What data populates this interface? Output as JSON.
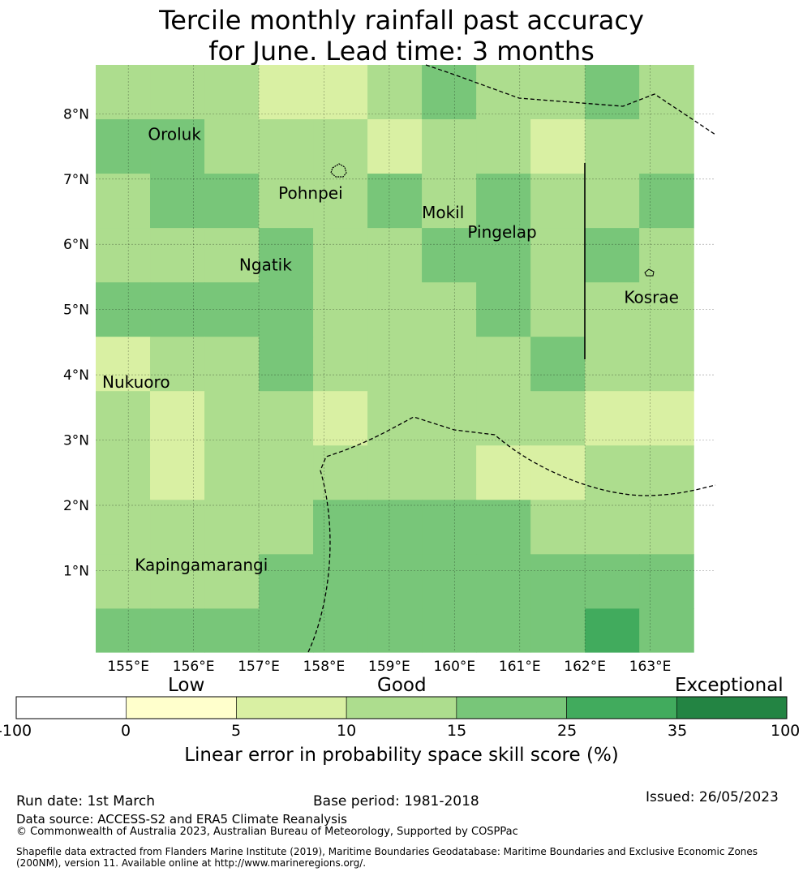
{
  "title": {
    "line1": "Tercile monthly rainfall past accuracy",
    "line2": "for June. Lead time: 3 months"
  },
  "axes": {
    "lon_labels": [
      "155°E",
      "156°E",
      "157°E",
      "158°E",
      "159°E",
      "160°E",
      "161°E",
      "162°E",
      "163°E"
    ],
    "lon_values": [
      155,
      156,
      157,
      158,
      159,
      160,
      161,
      162,
      163
    ],
    "lat_labels": [
      "8°N",
      "7°N",
      "6°N",
      "5°N",
      "4°N",
      "3°N",
      "2°N",
      "1°N"
    ],
    "lat_values": [
      8,
      7,
      6,
      5,
      4,
      3,
      2,
      1
    ],
    "lon_range": [
      154.5,
      164.0
    ],
    "lat_range": [
      -0.25,
      8.75
    ]
  },
  "places": [
    {
      "name": "Oroluk",
      "lon": 155.3,
      "lat": 7.6
    },
    {
      "name": "Pohnpei",
      "lon": 157.3,
      "lat": 6.7
    },
    {
      "name": "Mokil",
      "lon": 159.5,
      "lat": 6.4
    },
    {
      "name": "Pingelap",
      "lon": 160.2,
      "lat": 6.1
    },
    {
      "name": "Ngatik",
      "lon": 156.7,
      "lat": 5.6
    },
    {
      "name": "Kosrae",
      "lon": 162.6,
      "lat": 5.1
    },
    {
      "name": "Nukuoro",
      "lon": 154.6,
      "lat": 3.8
    },
    {
      "name": "Kapingamarangi",
      "lon": 155.1,
      "lat": 1.0
    }
  ],
  "grid": {
    "lon_start": 154.5,
    "lat_top": 8.75,
    "cell": 0.8333,
    "cols": 11,
    "rows": 16,
    "note": "class index per cell; 2 = 5-10, 3 = 10-15, 4 = 15-25, 5 = 25-35, 6 = 35-100",
    "classes": [
      [
        3,
        3,
        3,
        2,
        2,
        3,
        4,
        3,
        3,
        4,
        3
      ],
      [
        4,
        4,
        3,
        3,
        3,
        2,
        3,
        3,
        2,
        3,
        3
      ],
      [
        3,
        4,
        4,
        3,
        3,
        4,
        3,
        4,
        3,
        3,
        4
      ],
      [
        3,
        3,
        3,
        4,
        3,
        3,
        4,
        4,
        3,
        4,
        3
      ],
      [
        4,
        4,
        4,
        4,
        3,
        3,
        3,
        4,
        3,
        3,
        3
      ],
      [
        2,
        3,
        3,
        4,
        3,
        3,
        3,
        3,
        4,
        3,
        3
      ],
      [
        3,
        2,
        3,
        3,
        2,
        3,
        3,
        3,
        3,
        2,
        2
      ],
      [
        3,
        2,
        3,
        3,
        3,
        3,
        3,
        2,
        2,
        3,
        3
      ],
      [
        3,
        3,
        3,
        3,
        4,
        4,
        4,
        4,
        3,
        3,
        3
      ],
      [
        3,
        3,
        3,
        4,
        4,
        4,
        4,
        4,
        4,
        4,
        4
      ],
      [
        4,
        4,
        4,
        4,
        4,
        4,
        4,
        4,
        4,
        5,
        4
      ],
      [
        3,
        4,
        3,
        4,
        4,
        4,
        5,
        4,
        5,
        5,
        5
      ],
      [
        4,
        4,
        4,
        4,
        5,
        5,
        5,
        5,
        5,
        5,
        5
      ],
      [
        4,
        4,
        4,
        5,
        5,
        6,
        5,
        5,
        5,
        5,
        5
      ],
      [
        4,
        5,
        4,
        5,
        5,
        5,
        6,
        6,
        6,
        5,
        5
      ],
      [
        5,
        5,
        5,
        5,
        5,
        6,
        6,
        6,
        6,
        5,
        5
      ]
    ]
  },
  "colorbar": {
    "categories": [
      "Low",
      "Good",
      "Exceptional"
    ],
    "tick_labels": [
      "-100",
      "0",
      "5",
      "10",
      "15",
      "25",
      "35",
      "100"
    ],
    "colors": [
      "#ffffff",
      "#ffffcc",
      "#d9f0a3",
      "#addd8e",
      "#78c679",
      "#41ab5d",
      "#238443"
    ],
    "label": "Linear error in probability space skill score (%)"
  },
  "footer": {
    "run_date": "Run date: 1st March",
    "base_period": "Base period: 1981-2018",
    "issued": "Issued: 26/05/2023",
    "data_source": "Data source: ACCESS-S2 and ERA5 Climate Reanalysis",
    "copyright": "© Commonwealth of Australia 2023, Australian Bureau of Meteorology, Supported by COSPPac",
    "shapefile_line1": "Shapefile data extracted from Flanders Marine Institute (2019), Maritime Boundaries Geodatabase: Maritime Boundaries and Exclusive Economic Zones",
    "shapefile_line2": "(200NM), version 11. Available online at http://www.marineregions.org/."
  }
}
